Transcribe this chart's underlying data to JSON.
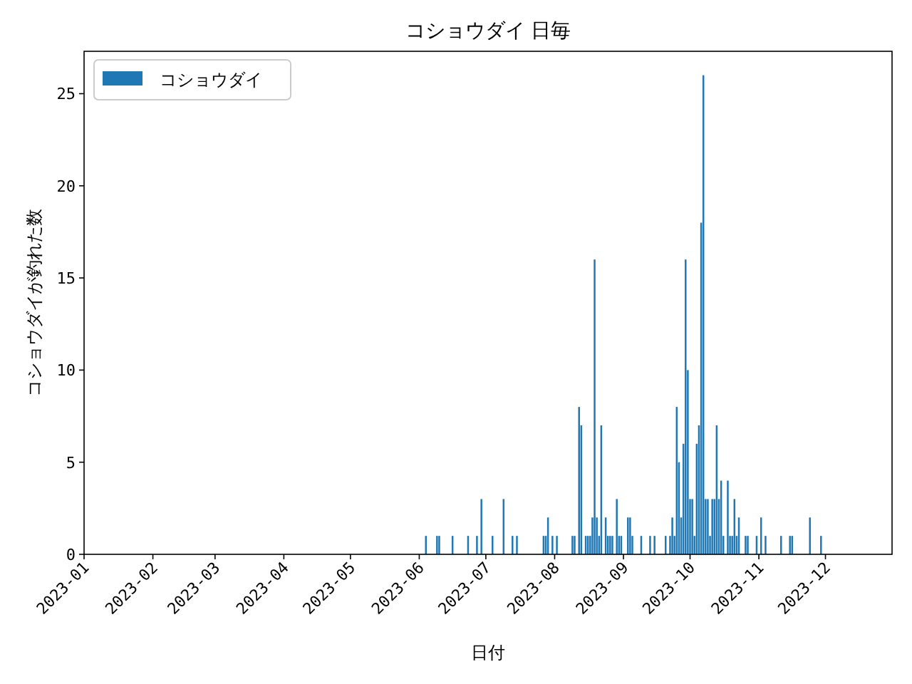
{
  "chart_data": {
    "type": "bar",
    "title": "コショウダイ 日毎",
    "xlabel": "日付",
    "ylabel": "コショウダイが釣れた数",
    "x": [
      "2023-06-04",
      "2023-06-09",
      "2023-06-10",
      "2023-06-16",
      "2023-06-23",
      "2023-06-27",
      "2023-06-29",
      "2023-07-04",
      "2023-07-09",
      "2023-07-13",
      "2023-07-15",
      "2023-07-27",
      "2023-07-28",
      "2023-07-29",
      "2023-07-31",
      "2023-08-02",
      "2023-08-09",
      "2023-08-10",
      "2023-08-12",
      "2023-08-13",
      "2023-08-15",
      "2023-08-16",
      "2023-08-17",
      "2023-08-18",
      "2023-08-19",
      "2023-08-20",
      "2023-08-21",
      "2023-08-22",
      "2023-08-24",
      "2023-08-25",
      "2023-08-26",
      "2023-08-27",
      "2023-08-29",
      "2023-08-30",
      "2023-08-31",
      "2023-09-03",
      "2023-09-04",
      "2023-09-05",
      "2023-09-09",
      "2023-09-13",
      "2023-09-15",
      "2023-09-20",
      "2023-09-22",
      "2023-09-23",
      "2023-09-24",
      "2023-09-25",
      "2023-09-26",
      "2023-09-27",
      "2023-09-28",
      "2023-09-29",
      "2023-09-30",
      "2023-10-01",
      "2023-10-02",
      "2023-10-03",
      "2023-10-04",
      "2023-10-05",
      "2023-10-06",
      "2023-10-07",
      "2023-10-08",
      "2023-10-09",
      "2023-10-10",
      "2023-10-11",
      "2023-10-12",
      "2023-10-13",
      "2023-10-14",
      "2023-10-15",
      "2023-10-16",
      "2023-10-18",
      "2023-10-19",
      "2023-10-20",
      "2023-10-21",
      "2023-10-22",
      "2023-10-23",
      "2023-10-26",
      "2023-10-27",
      "2023-10-31",
      "2023-11-02",
      "2023-11-04",
      "2023-11-11",
      "2023-11-15",
      "2023-11-16",
      "2023-11-24",
      "2023-11-29"
    ],
    "series": [
      {
        "name": "コショウダイ",
        "color": "#1f77b4",
        "values": [
          1,
          1,
          1,
          1,
          1,
          1,
          3,
          1,
          3,
          1,
          1,
          1,
          1,
          2,
          1,
          1,
          1,
          1,
          8,
          7,
          1,
          1,
          1,
          2,
          16,
          2,
          1,
          7,
          2,
          1,
          1,
          1,
          3,
          1,
          1,
          2,
          2,
          1,
          1,
          1,
          1,
          1,
          1,
          2,
          1,
          8,
          5,
          2,
          6,
          16,
          10,
          3,
          3,
          1,
          6,
          7,
          18,
          26,
          3,
          3,
          1,
          3,
          3,
          7,
          3,
          4,
          1,
          4,
          1,
          1,
          3,
          1,
          2,
          1,
          1,
          1,
          2,
          1,
          1,
          1,
          1,
          2,
          1
        ]
      }
    ],
    "xlim": [
      "2023-01-01",
      "2023-12-31"
    ],
    "xticks": [
      "2023-01",
      "2023-02",
      "2023-03",
      "2023-04",
      "2023-05",
      "2023-06",
      "2023-07",
      "2023-08",
      "2023-09",
      "2023-10",
      "2023-11",
      "2023-12"
    ],
    "ylim": [
      0,
      27.3
    ],
    "yticks": [
      0,
      5,
      10,
      15,
      20,
      25
    ],
    "legend": "top left"
  }
}
